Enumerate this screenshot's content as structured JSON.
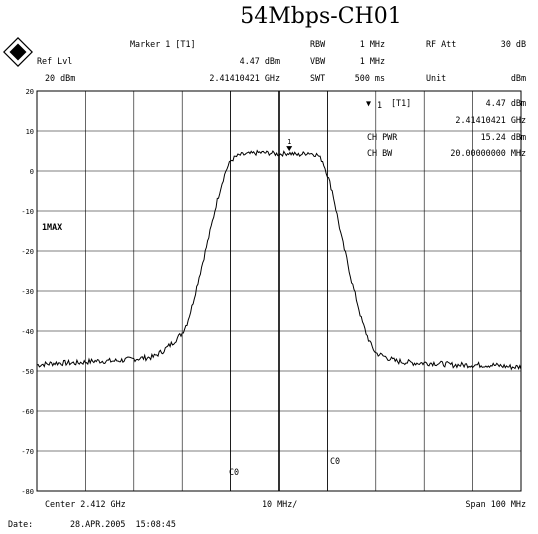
{
  "title": "54Mbps-CH01",
  "header": {
    "ref_lvl_label": "Ref Lvl",
    "ref_lvl_value": "20 dBm",
    "marker_label": "Marker 1 [T1]",
    "marker_level": "4.47 dBm",
    "marker_freq": "2.41410421 GHz",
    "rbw_label": "RBW",
    "rbw_value": "1 MHz",
    "vbw_label": "VBW",
    "vbw_value": "1 MHz",
    "swt_label": "SWT",
    "swt_value": "500 ms",
    "rf_att_label": "RF Att",
    "rf_att_value": "30 dB",
    "unit_label": "Unit",
    "unit_value": "dBm"
  },
  "info_box": {
    "marker_id": "1",
    "marker_tag": "[T1]",
    "marker_level": "4.47 dBm",
    "marker_freq": "2.41410421 GHz",
    "ch_pwr_label": "CH PWR",
    "ch_pwr_value": "15.24 dBm",
    "ch_bw_label": "CH BW",
    "ch_bw_value": "20.00000000 MHz"
  },
  "trace_label": "1MAX",
  "marker_flag": "1",
  "channel_labels": [
    "C0",
    "C0"
  ],
  "footer": {
    "center": "Center 2.412 GHz",
    "div": "10 MHz/",
    "span": "Span 100 MHz",
    "date_label": "Date:",
    "date_value": "28.APR.2005  15:08:45"
  },
  "chart_data": {
    "type": "line",
    "title": "54Mbps-CH01",
    "xlabel": "",
    "ylabel": "",
    "x_unit": "MHz",
    "xlim": [
      2362,
      2462
    ],
    "ylim": [
      -80,
      20
    ],
    "yticks": [
      20,
      10,
      0,
      -10,
      -20,
      -30,
      -40,
      -50,
      -60,
      -70,
      -80
    ],
    "grid": true,
    "series": [
      {
        "name": "1MAX",
        "x": [
          2362,
          2366,
          2370,
          2374,
          2378,
          2382,
          2386,
          2388,
          2390,
          2392,
          2393,
          2394,
          2395,
          2396,
          2397,
          2398,
          2399,
          2400,
          2401,
          2402,
          2403,
          2404,
          2406,
          2408,
          2410,
          2412,
          2414,
          2416,
          2418,
          2420,
          2421,
          2422,
          2423,
          2424,
          2425,
          2426,
          2427,
          2428,
          2429,
          2430,
          2431,
          2432,
          2434,
          2436,
          2440,
          2444,
          2448,
          2452,
          2456,
          2460,
          2462
        ],
        "y": [
          -48.5,
          -48.0,
          -48.0,
          -47.5,
          -47.5,
          -47.0,
          -46.5,
          -45.0,
          -43.0,
          -40.5,
          -38.0,
          -34.0,
          -29.0,
          -24.0,
          -19.0,
          -14.0,
          -8.5,
          -4.0,
          0.0,
          2.5,
          3.5,
          4.0,
          4.3,
          4.6,
          4.5,
          4.2,
          4.5,
          4.0,
          4.6,
          4.0,
          2.5,
          -1.0,
          -5.0,
          -11.0,
          -17.0,
          -22.0,
          -27.5,
          -32.0,
          -37.0,
          -40.5,
          -43.5,
          -45.5,
          -46.5,
          -47.5,
          -48.0,
          -48.0,
          -48.5,
          -48.5,
          -48.5,
          -49.0,
          -49.0
        ]
      }
    ],
    "marker": {
      "x": 2414.10421,
      "y": 4.47,
      "label": "1"
    },
    "channel_lines_x": [
      2402,
      2422
    ]
  }
}
